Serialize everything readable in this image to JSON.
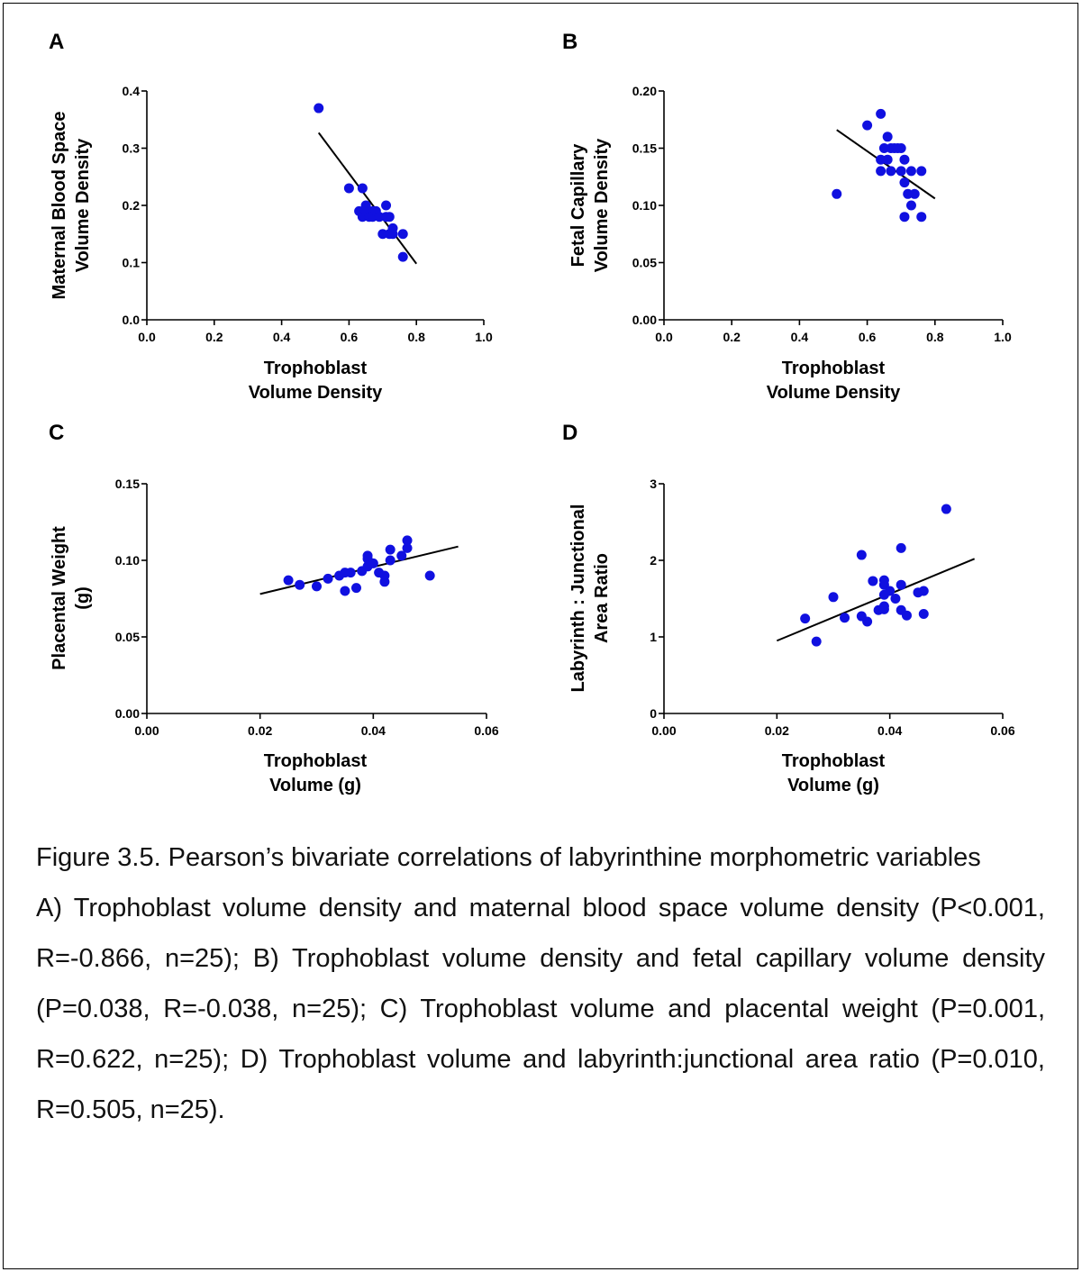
{
  "figure": {
    "caption_title": "Figure 3.5. Pearson’s bivariate correlations of labyrinthine morphometric variables",
    "caption_body": "A) Trophoblast volume density and maternal blood space volume density (P<0.001, R=-0.866, n=25); B) Trophoblast volume density and fetal capillary volume density (P=0.038, R=-0.038, n=25); C) Trophoblast volume and placental weight (P=0.001, R=0.622, n=25); D) Trophoblast volume and labyrinth:junctional area ratio (P=0.010, R=0.505, n=25)."
  },
  "colors": {
    "points": "#1010e0",
    "fit_line": "#000000"
  },
  "chart_data": [
    {
      "type": "scatter",
      "panel": "A",
      "xlabel": [
        "Trophoblast",
        "Volume Density"
      ],
      "ylabel": [
        "Maternal Blood Space",
        "Volume Density"
      ],
      "xlim": [
        0,
        1.0
      ],
      "ylim": [
        0,
        0.4
      ],
      "xticks": [
        "0.0",
        "0.2",
        "0.4",
        "0.6",
        "0.8",
        "1.0"
      ],
      "yticks": [
        "0.0",
        "0.1",
        "0.2",
        "0.3",
        "0.4"
      ],
      "fit_line": [
        [
          0.51,
          0.327
        ],
        [
          0.8,
          0.098
        ]
      ],
      "points": [
        [
          0.51,
          0.37
        ],
        [
          0.6,
          0.23
        ],
        [
          0.64,
          0.23
        ],
        [
          0.63,
          0.19
        ],
        [
          0.64,
          0.18
        ],
        [
          0.65,
          0.19
        ],
        [
          0.65,
          0.2
        ],
        [
          0.66,
          0.18
        ],
        [
          0.67,
          0.19
        ],
        [
          0.67,
          0.18
        ],
        [
          0.68,
          0.19
        ],
        [
          0.69,
          0.18
        ],
        [
          0.7,
          0.15
        ],
        [
          0.71,
          0.2
        ],
        [
          0.71,
          0.18
        ],
        [
          0.72,
          0.15
        ],
        [
          0.72,
          0.18
        ],
        [
          0.73,
          0.16
        ],
        [
          0.73,
          0.15
        ],
        [
          0.76,
          0.15
        ],
        [
          0.76,
          0.11
        ]
      ]
    },
    {
      "type": "scatter",
      "panel": "B",
      "xlabel": [
        "Trophoblast",
        "Volume Density"
      ],
      "ylabel": [
        "Fetal Capillary",
        "Volume Density"
      ],
      "xlim": [
        0,
        1.0
      ],
      "ylim": [
        0,
        0.2
      ],
      "xticks": [
        "0.0",
        "0.2",
        "0.4",
        "0.6",
        "0.8",
        "1.0"
      ],
      "yticks": [
        "0.00",
        "0.05",
        "0.10",
        "0.15",
        "0.20"
      ],
      "fit_line": [
        [
          0.51,
          0.166
        ],
        [
          0.8,
          0.106
        ]
      ],
      "points": [
        [
          0.51,
          0.11
        ],
        [
          0.6,
          0.17
        ],
        [
          0.64,
          0.18
        ],
        [
          0.64,
          0.14
        ],
        [
          0.64,
          0.13
        ],
        [
          0.65,
          0.15
        ],
        [
          0.66,
          0.16
        ],
        [
          0.66,
          0.14
        ],
        [
          0.67,
          0.15
        ],
        [
          0.67,
          0.13
        ],
        [
          0.68,
          0.15
        ],
        [
          0.69,
          0.15
        ],
        [
          0.7,
          0.13
        ],
        [
          0.7,
          0.15
        ],
        [
          0.71,
          0.14
        ],
        [
          0.71,
          0.12
        ],
        [
          0.71,
          0.09
        ],
        [
          0.72,
          0.11
        ],
        [
          0.73,
          0.1
        ],
        [
          0.73,
          0.13
        ],
        [
          0.74,
          0.11
        ],
        [
          0.76,
          0.13
        ],
        [
          0.76,
          0.09
        ]
      ]
    },
    {
      "type": "scatter",
      "panel": "C",
      "xlabel": [
        "Trophoblast",
        "Volume (g)"
      ],
      "ylabel": [
        "Placental Weight",
        "(g)"
      ],
      "xlim": [
        0,
        0.06
      ],
      "ylim": [
        0,
        0.15
      ],
      "xticks": [
        "0.00",
        "0.02",
        "0.04",
        "0.06"
      ],
      "yticks": [
        "0.00",
        "0.05",
        "0.10",
        "0.15"
      ],
      "fit_line": [
        [
          0.02,
          0.078
        ],
        [
          0.055,
          0.109
        ]
      ],
      "points": [
        [
          0.025,
          0.087
        ],
        [
          0.027,
          0.084
        ],
        [
          0.03,
          0.083
        ],
        [
          0.032,
          0.088
        ],
        [
          0.034,
          0.09
        ],
        [
          0.035,
          0.092
        ],
        [
          0.035,
          0.08
        ],
        [
          0.036,
          0.092
        ],
        [
          0.037,
          0.082
        ],
        [
          0.038,
          0.093
        ],
        [
          0.039,
          0.096
        ],
        [
          0.039,
          0.101
        ],
        [
          0.039,
          0.103
        ],
        [
          0.04,
          0.098
        ],
        [
          0.041,
          0.092
        ],
        [
          0.042,
          0.09
        ],
        [
          0.042,
          0.086
        ],
        [
          0.043,
          0.1
        ],
        [
          0.043,
          0.107
        ],
        [
          0.045,
          0.103
        ],
        [
          0.046,
          0.108
        ],
        [
          0.046,
          0.113
        ],
        [
          0.05,
          0.09
        ]
      ]
    },
    {
      "type": "scatter",
      "panel": "D",
      "xlabel": [
        "Trophoblast",
        "Volume (g)"
      ],
      "ylabel": [
        "Labyrinth : Junctional",
        "Area Ratio"
      ],
      "xlim": [
        0,
        0.06
      ],
      "ylim": [
        0,
        3
      ],
      "xticks": [
        "0.00",
        "0.02",
        "0.04",
        "0.06"
      ],
      "yticks": [
        "0",
        "1",
        "2",
        "3"
      ],
      "fit_line": [
        [
          0.02,
          0.95
        ],
        [
          0.055,
          2.02
        ]
      ],
      "points": [
        [
          0.025,
          1.24
        ],
        [
          0.027,
          0.94
        ],
        [
          0.03,
          1.52
        ],
        [
          0.032,
          1.25
        ],
        [
          0.035,
          1.27
        ],
        [
          0.035,
          2.07
        ],
        [
          0.036,
          1.2
        ],
        [
          0.037,
          1.73
        ],
        [
          0.038,
          1.35
        ],
        [
          0.039,
          1.4
        ],
        [
          0.039,
          1.55
        ],
        [
          0.039,
          1.74
        ],
        [
          0.039,
          1.68
        ],
        [
          0.039,
          1.36
        ],
        [
          0.04,
          1.6
        ],
        [
          0.041,
          1.5
        ],
        [
          0.042,
          2.16
        ],
        [
          0.042,
          1.68
        ],
        [
          0.042,
          1.35
        ],
        [
          0.043,
          1.28
        ],
        [
          0.045,
          1.58
        ],
        [
          0.046,
          1.6
        ],
        [
          0.046,
          1.3
        ],
        [
          0.05,
          2.67
        ]
      ]
    }
  ]
}
